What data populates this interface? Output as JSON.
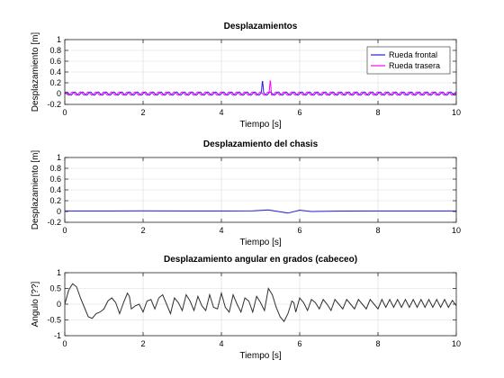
{
  "chart_data": [
    {
      "type": "line",
      "title": "Desplazamientos",
      "xlabel": "Tiempo [s]",
      "ylabel": "Desplazamiento [m]",
      "xlim": [
        0,
        10
      ],
      "ylim": [
        -0.2,
        1
      ],
      "xticks": [
        0,
        2,
        4,
        6,
        8,
        10
      ],
      "yticks": [
        -0.2,
        0,
        0.2,
        0.4,
        0.6,
        0.8,
        1
      ],
      "grid": true,
      "legend_position": "top-right",
      "series": [
        {
          "name": "Rueda frontal",
          "color": "#1f1fe0",
          "baseline": 0.0,
          "amplitude": 0.03,
          "frequency_hz": 5.0,
          "phase": 0.0,
          "spikes": [
            {
              "t": 5.05,
              "peak": 0.22,
              "width": 0.03
            }
          ]
        },
        {
          "name": "Rueda trasera",
          "color": "#ff00ff",
          "baseline": 0.0,
          "amplitude": 0.03,
          "frequency_hz": 5.0,
          "phase": 1.57,
          "spikes": [
            {
              "t": 5.25,
              "peak": 0.26,
              "width": 0.03
            }
          ]
        }
      ]
    },
    {
      "type": "line",
      "title": "Desplazamiento del chasis",
      "xlabel": "Tiempo [s]",
      "ylabel": "Desplazamiento [m]",
      "xlim": [
        0,
        10
      ],
      "ylim": [
        -0.2,
        1
      ],
      "xticks": [
        0,
        2,
        4,
        6,
        8,
        10
      ],
      "yticks": [
        -0.2,
        0,
        0.2,
        0.4,
        0.6,
        0.8,
        1
      ],
      "grid": true,
      "series": [
        {
          "color": "#1f1fe0",
          "points": [
            [
              0,
              0.01
            ],
            [
              1,
              0.01
            ],
            [
              2,
              0.012
            ],
            [
              3,
              0.01
            ],
            [
              4,
              0.01
            ],
            [
              4.8,
              0.012
            ],
            [
              5.2,
              0.03
            ],
            [
              5.45,
              0.0
            ],
            [
              5.7,
              -0.03
            ],
            [
              6.0,
              0.025
            ],
            [
              6.3,
              0.0
            ],
            [
              7,
              0.008
            ],
            [
              8,
              0.01
            ],
            [
              9,
              0.01
            ],
            [
              10,
              0.01
            ]
          ]
        }
      ]
    },
    {
      "type": "line",
      "title": "Desplazamiento angular en grados (cabeceo)",
      "xlabel": "Tiempo [s]",
      "ylabel": "Angulo [??]",
      "xlim": [
        0,
        10
      ],
      "ylim": [
        -1,
        1
      ],
      "xticks": [
        0,
        2,
        4,
        6,
        8,
        10
      ],
      "yticks": [
        -1,
        -0.5,
        0,
        0.5,
        1
      ],
      "grid": true,
      "series": [
        {
          "color": "#303030",
          "points": [
            [
              0,
              0
            ],
            [
              0.1,
              0.45
            ],
            [
              0.2,
              0.65
            ],
            [
              0.3,
              0.55
            ],
            [
              0.4,
              0.2
            ],
            [
              0.5,
              -0.1
            ],
            [
              0.6,
              -0.4
            ],
            [
              0.7,
              -0.45
            ],
            [
              0.8,
              -0.3
            ],
            [
              0.9,
              -0.25
            ],
            [
              1.0,
              -0.15
            ],
            [
              1.1,
              0.1
            ],
            [
              1.2,
              0.2
            ],
            [
              1.3,
              0.05
            ],
            [
              1.4,
              -0.3
            ],
            [
              1.5,
              0.05
            ],
            [
              1.6,
              0.35
            ],
            [
              1.65,
              0.25
            ],
            [
              1.7,
              -0.15
            ],
            [
              1.8,
              -0.05
            ],
            [
              1.9,
              0.0
            ],
            [
              2.0,
              -0.25
            ],
            [
              2.1,
              0.1
            ],
            [
              2.2,
              0.15
            ],
            [
              2.3,
              -0.15
            ],
            [
              2.4,
              0.2
            ],
            [
              2.5,
              0.3
            ],
            [
              2.6,
              0.0
            ],
            [
              2.7,
              -0.3
            ],
            [
              2.8,
              0.2
            ],
            [
              2.9,
              0.05
            ],
            [
              3.0,
              -0.2
            ],
            [
              3.1,
              0.3
            ],
            [
              3.2,
              0.1
            ],
            [
              3.3,
              -0.2
            ],
            [
              3.4,
              0.25
            ],
            [
              3.5,
              -0.05
            ],
            [
              3.6,
              -0.2
            ],
            [
              3.7,
              0.3
            ],
            [
              3.8,
              -0.1
            ],
            [
              3.9,
              -0.15
            ],
            [
              4.0,
              0.35
            ],
            [
              4.1,
              -0.1
            ],
            [
              4.2,
              -0.25
            ],
            [
              4.3,
              0.3
            ],
            [
              4.4,
              0.0
            ],
            [
              4.5,
              -0.25
            ],
            [
              4.6,
              0.2
            ],
            [
              4.7,
              0.1
            ],
            [
              4.8,
              -0.25
            ],
            [
              4.9,
              0.25
            ],
            [
              5.0,
              0.05
            ],
            [
              5.1,
              -0.2
            ],
            [
              5.2,
              0.5
            ],
            [
              5.3,
              0.3
            ],
            [
              5.4,
              -0.1
            ],
            [
              5.5,
              -0.4
            ],
            [
              5.6,
              -0.55
            ],
            [
              5.7,
              -0.3
            ],
            [
              5.8,
              0.1
            ],
            [
              5.85,
              0.05
            ],
            [
              5.9,
              -0.25
            ],
            [
              6.0,
              0.2
            ],
            [
              6.1,
              0.05
            ],
            [
              6.2,
              -0.2
            ],
            [
              6.3,
              0.15
            ],
            [
              6.4,
              0.05
            ],
            [
              6.5,
              -0.15
            ],
            [
              6.6,
              0.15
            ],
            [
              6.7,
              0.0
            ],
            [
              6.8,
              -0.2
            ],
            [
              6.9,
              0.15
            ],
            [
              7.0,
              0.0
            ],
            [
              7.1,
              -0.15
            ],
            [
              7.2,
              0.15
            ],
            [
              7.3,
              0.0
            ],
            [
              7.4,
              -0.15
            ],
            [
              7.5,
              0.15
            ],
            [
              7.6,
              0.0
            ],
            [
              7.7,
              -0.15
            ],
            [
              7.8,
              0.15
            ],
            [
              7.9,
              0.0
            ],
            [
              8.0,
              -0.15
            ],
            [
              8.1,
              0.15
            ],
            [
              8.2,
              -0.1
            ],
            [
              8.3,
              0.15
            ],
            [
              8.4,
              -0.1
            ],
            [
              8.5,
              0.15
            ],
            [
              8.6,
              -0.1
            ],
            [
              8.7,
              0.15
            ],
            [
              8.8,
              -0.1
            ],
            [
              8.9,
              0.15
            ],
            [
              9.0,
              -0.1
            ],
            [
              9.1,
              0.15
            ],
            [
              9.2,
              -0.1
            ],
            [
              9.3,
              0.15
            ],
            [
              9.4,
              -0.1
            ],
            [
              9.5,
              0.15
            ],
            [
              9.6,
              -0.1
            ],
            [
              9.7,
              0.15
            ],
            [
              9.8,
              -0.1
            ],
            [
              9.9,
              0.12
            ],
            [
              10.0,
              -0.05
            ]
          ]
        }
      ]
    }
  ]
}
